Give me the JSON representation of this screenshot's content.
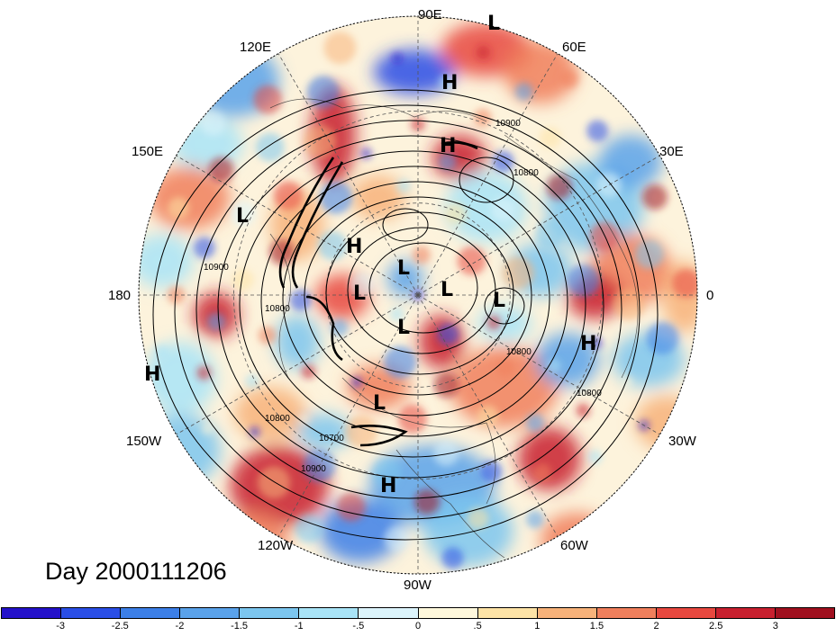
{
  "title": "Day 2000111206",
  "longitude_labels": [
    {
      "text": "90E",
      "anchor_deg": 90
    },
    {
      "text": "60E",
      "anchor_deg": 60
    },
    {
      "text": "30E",
      "anchor_deg": 30
    },
    {
      "text": "0",
      "anchor_deg": 0
    },
    {
      "text": "30W",
      "anchor_deg": -30
    },
    {
      "text": "60W",
      "anchor_deg": -60
    },
    {
      "text": "90W",
      "anchor_deg": -90
    },
    {
      "text": "120W",
      "anchor_deg": -120
    },
    {
      "text": "150W",
      "anchor_deg": -150
    },
    {
      "text": "180",
      "anchor_deg": 180
    },
    {
      "text": "150E",
      "anchor_deg": 150
    },
    {
      "text": "120E",
      "anchor_deg": 120
    }
  ],
  "pressure_centers": [
    {
      "type": "L"
    },
    {
      "type": "H"
    },
    {
      "type": "H"
    },
    {
      "type": "L"
    },
    {
      "type": "H"
    },
    {
      "type": "L"
    },
    {
      "type": "L"
    },
    {
      "type": "L"
    },
    {
      "type": "L"
    },
    {
      "type": "L"
    },
    {
      "type": "H"
    },
    {
      "type": "L"
    },
    {
      "type": "H"
    },
    {
      "type": "H"
    }
  ],
  "contour_labels": [
    "10900",
    "10800",
    "10900",
    "10800",
    "10800",
    "10800",
    "10900",
    "10700",
    "10800"
  ],
  "colorbar": {
    "ticks": [
      "-3",
      "-2.5",
      "-2",
      "-1.5",
      "-1",
      "-.5",
      "0",
      ".5",
      "1",
      "1.5",
      "2",
      "2.5",
      "3"
    ],
    "colors": [
      "#2411c9",
      "#2a4ee6",
      "#3c7fe7",
      "#5aa2ea",
      "#7cc6ef",
      "#a9e4f7",
      "#dcf4fb",
      "#fff8dc",
      "#fde3a6",
      "#f7b27a",
      "#f07f5c",
      "#e8483f",
      "#c8202f",
      "#a0101f"
    ]
  }
}
